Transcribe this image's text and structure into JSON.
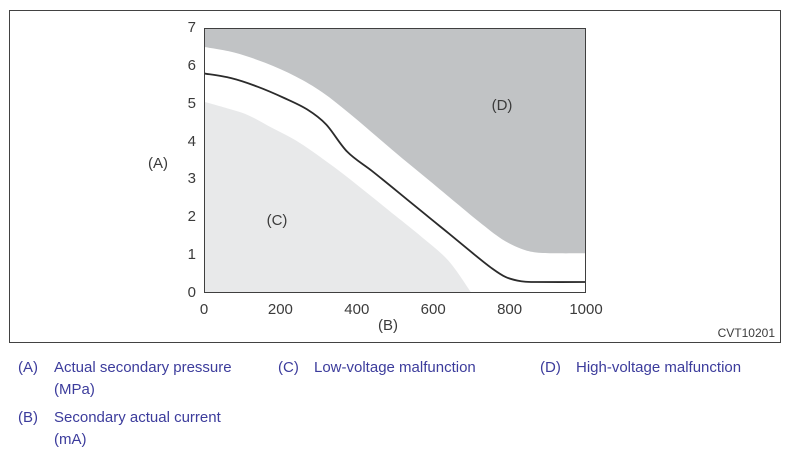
{
  "figure": {
    "code": "CVT10201"
  },
  "chart_data": {
    "type": "area",
    "title": "",
    "x_axis": {
      "symbol": "(B)",
      "label": "Secondary actual current (mA)",
      "ticks": [
        0,
        200,
        400,
        600,
        800,
        1000
      ],
      "range": [
        0,
        1000
      ]
    },
    "y_axis": {
      "symbol": "(A)",
      "label": "Actual secondary pressure (MPa)",
      "ticks": [
        7,
        6,
        5,
        4,
        3,
        2,
        1,
        0
      ],
      "range": [
        0,
        7
      ]
    },
    "regions": [
      {
        "id": "C",
        "label": "(C)",
        "name": "Low-voltage malfunction",
        "color": "#e8e9ea",
        "fill": "below",
        "boundary": [
          [
            0,
            5.05
          ],
          [
            60,
            4.88
          ],
          [
            115,
            4.7
          ],
          [
            180,
            4.35
          ],
          [
            250,
            3.97
          ],
          [
            340,
            3.33
          ],
          [
            420,
            2.7
          ],
          [
            500,
            2.05
          ],
          [
            570,
            1.48
          ],
          [
            640,
            0.85
          ],
          [
            700,
            0
          ]
        ]
      },
      {
        "id": "D",
        "label": "(D)",
        "name": "High-voltage malfunction",
        "color": "#c1c3c5",
        "fill": "above",
        "boundary": [
          [
            0,
            6.5
          ],
          [
            80,
            6.35
          ],
          [
            160,
            6.08
          ],
          [
            240,
            5.72
          ],
          [
            310,
            5.3
          ],
          [
            380,
            4.75
          ],
          [
            450,
            4.15
          ],
          [
            520,
            3.55
          ],
          [
            590,
            2.97
          ],
          [
            660,
            2.38
          ],
          [
            720,
            1.88
          ],
          [
            780,
            1.42
          ],
          [
            830,
            1.17
          ],
          [
            870,
            1.07
          ],
          [
            920,
            1.05
          ],
          [
            1000,
            1.05
          ]
        ]
      }
    ],
    "series": [
      {
        "name": "judgment-threshold-curve",
        "color": "#2b2b2b",
        "points": [
          [
            0,
            5.8
          ],
          [
            70,
            5.68
          ],
          [
            140,
            5.45
          ],
          [
            210,
            5.15
          ],
          [
            270,
            4.85
          ],
          [
            320,
            4.45
          ],
          [
            375,
            3.73
          ],
          [
            440,
            3.22
          ],
          [
            510,
            2.65
          ],
          [
            580,
            2.07
          ],
          [
            640,
            1.58
          ],
          [
            700,
            1.08
          ],
          [
            750,
            0.68
          ],
          [
            790,
            0.42
          ],
          [
            830,
            0.31
          ],
          [
            870,
            0.29
          ],
          [
            1000,
            0.29
          ]
        ]
      }
    ],
    "layout": {
      "grid": false,
      "plot_border": true,
      "legend_position": "bottom"
    }
  },
  "legend": {
    "items": [
      {
        "key": "(A)",
        "lines": [
          "Actual secondary pressure",
          "(MPa)"
        ]
      },
      {
        "key": "(B)",
        "lines": [
          "Secondary actual current",
          "(mA)"
        ]
      },
      {
        "key": "(C)",
        "lines": [
          "Low-voltage malfunction"
        ]
      },
      {
        "key": "(D)",
        "lines": [
          "High-voltage malfunction"
        ]
      }
    ]
  },
  "colors": {
    "legend_text": "#3c3c9c",
    "figure_text": "#3b3b3b",
    "region_c": "#e8e9ea",
    "region_d": "#c1c3c5",
    "curve": "#2b2b2b",
    "border": "#424242"
  }
}
